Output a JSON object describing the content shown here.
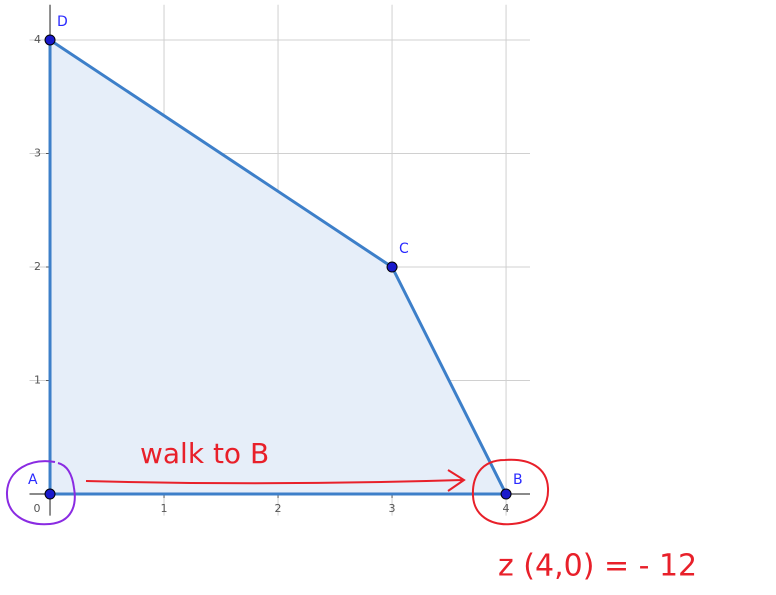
{
  "chart_data": {
    "type": "area",
    "x": [
      0,
      4,
      3,
      0
    ],
    "series": [
      {
        "values": [
          0,
          0,
          2,
          4
        ],
        "color": "#3d7fc9",
        "fill": "#e6eef9",
        "point_labels": [
          "A",
          "B",
          "C",
          "D"
        ]
      }
    ],
    "xlim": [
      -0.18,
      4.21
    ],
    "ylim": [
      -0.19,
      4.31
    ],
    "xticks": [
      0,
      1,
      2,
      3,
      4
    ],
    "yticks": [
      1,
      2,
      3,
      4
    ],
    "grid": true,
    "annotations": [
      "walk to B",
      "z (4,0) = - 12"
    ]
  }
}
